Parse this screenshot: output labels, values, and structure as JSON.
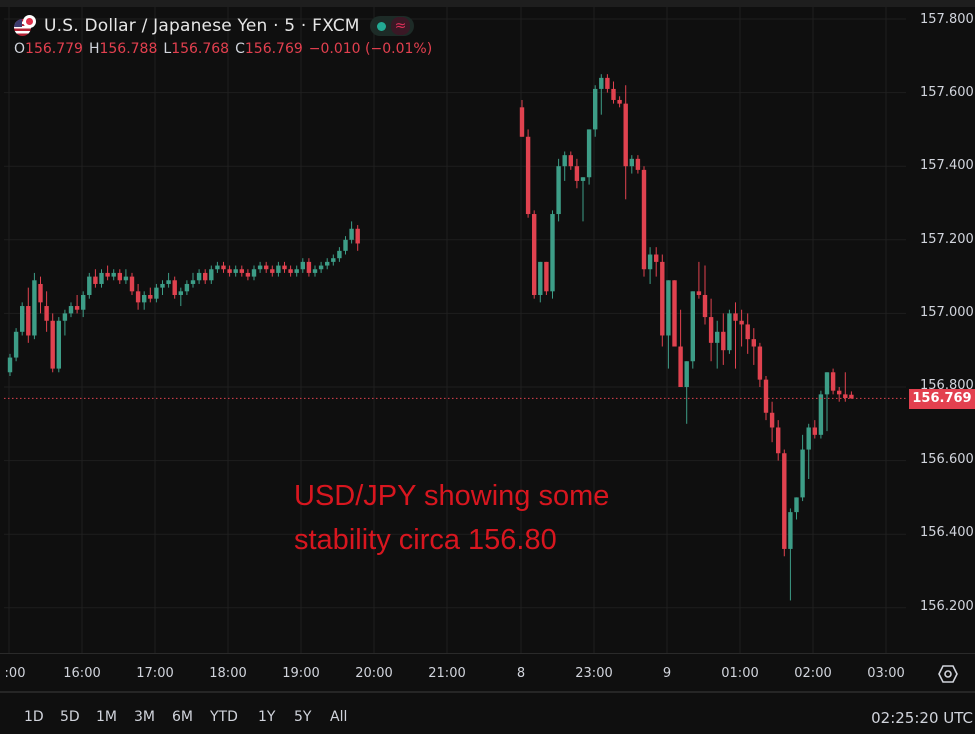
{
  "header": {
    "symbol_title": "U.S. Dollar / Japanese Yen · 5 · FXCM",
    "market_status": "open",
    "ohlc": {
      "o_label": "O",
      "o_value": "156.779",
      "h_label": "H",
      "h_value": "156.788",
      "l_label": "L",
      "l_value": "156.768",
      "c_label": "C",
      "c_value": "156.769",
      "change": "−0.010 (−0.01%)"
    }
  },
  "price_axis": {
    "ticks": [
      "157.800",
      "157.600",
      "157.400",
      "157.200",
      "157.000",
      "156.800",
      "156.600",
      "156.400",
      "156.200"
    ],
    "last_price": "156.769"
  },
  "time_axis": {
    "labels": [
      ":00",
      "16:00",
      "17:00",
      "18:00",
      "19:00",
      "20:00",
      "21:00",
      "8",
      "23:00",
      "9",
      "01:00",
      "02:00",
      "03:00"
    ]
  },
  "range_buttons": [
    "1D",
    "5D",
    "1M",
    "3M",
    "6M",
    "YTD",
    "1Y",
    "5Y",
    "All"
  ],
  "clock": "02:25:20 UTC",
  "annotation": {
    "line1": "USD/JPY showing some",
    "line2": "stability circa 156.80"
  },
  "colors": {
    "up": "#3d9d87",
    "down": "#e0424f",
    "background": "#0f0f0f",
    "grid": "#1f1f1f",
    "annotation": "#d8161f"
  },
  "chart_data": {
    "type": "candlestick",
    "title": "U.S. Dollar / Japanese Yen · 5 · FXCM",
    "interval": "5 min",
    "xlabel": "",
    "ylabel": "",
    "ylim": [
      156.15,
      157.82
    ],
    "y_ticks": [
      156.2,
      156.4,
      156.6,
      156.8,
      157.0,
      157.2,
      157.4,
      157.6,
      157.8
    ],
    "x_tick_labels": [
      ":00",
      "16:00",
      "17:00",
      "18:00",
      "19:00",
      "20:00",
      "21:00",
      "8",
      "23:00",
      "9",
      "01:00",
      "02:00",
      "03:00"
    ],
    "last_price": 156.769,
    "ohlc_last": {
      "open": 156.779,
      "high": 156.788,
      "low": 156.768,
      "close": 156.769
    },
    "grid": true,
    "candles": [
      [
        156.84,
        156.89,
        156.83,
        156.88
      ],
      [
        156.88,
        156.96,
        156.87,
        156.95
      ],
      [
        156.95,
        157.03,
        156.94,
        157.02
      ],
      [
        157.02,
        157.07,
        156.92,
        156.94
      ],
      [
        156.94,
        157.11,
        156.93,
        157.09
      ],
      [
        157.08,
        157.1,
        157.0,
        157.03
      ],
      [
        157.02,
        157.06,
        156.95,
        156.98
      ],
      [
        156.98,
        157.0,
        156.84,
        156.85
      ],
      [
        156.85,
        156.99,
        156.84,
        156.98
      ],
      [
        156.98,
        157.01,
        156.94,
        157.0
      ],
      [
        157.0,
        157.03,
        156.99,
        157.02
      ],
      [
        157.02,
        157.05,
        157.0,
        157.01
      ],
      [
        157.01,
        157.06,
        156.99,
        157.05
      ],
      [
        157.05,
        157.11,
        157.04,
        157.1
      ],
      [
        157.1,
        157.12,
        157.07,
        157.08
      ],
      [
        157.08,
        157.12,
        157.07,
        157.11
      ],
      [
        157.11,
        157.13,
        157.09,
        157.1
      ],
      [
        157.1,
        157.12,
        157.09,
        157.11
      ],
      [
        157.11,
        157.12,
        157.08,
        157.09
      ],
      [
        157.09,
        157.12,
        157.08,
        157.1
      ],
      [
        157.1,
        157.11,
        157.05,
        157.06
      ],
      [
        157.06,
        157.08,
        157.01,
        157.03
      ],
      [
        157.03,
        157.06,
        157.01,
        157.05
      ],
      [
        157.05,
        157.07,
        157.03,
        157.04
      ],
      [
        157.04,
        157.08,
        157.03,
        157.07
      ],
      [
        157.07,
        157.09,
        157.05,
        157.08
      ],
      [
        157.08,
        157.11,
        157.07,
        157.09
      ],
      [
        157.09,
        157.1,
        157.04,
        157.05
      ],
      [
        157.05,
        157.07,
        157.02,
        157.06
      ],
      [
        157.06,
        157.09,
        157.05,
        157.08
      ],
      [
        157.08,
        157.11,
        157.07,
        157.09
      ],
      [
        157.09,
        157.12,
        157.08,
        157.11
      ],
      [
        157.11,
        157.12,
        157.08,
        157.09
      ],
      [
        157.09,
        157.13,
        157.08,
        157.12
      ],
      [
        157.12,
        157.14,
        157.11,
        157.13
      ],
      [
        157.13,
        157.14,
        157.11,
        157.12
      ],
      [
        157.12,
        157.13,
        157.1,
        157.11
      ],
      [
        157.11,
        157.13,
        157.1,
        157.12
      ],
      [
        157.12,
        157.13,
        157.1,
        157.11
      ],
      [
        157.11,
        157.12,
        157.09,
        157.1
      ],
      [
        157.1,
        157.13,
        157.09,
        157.12
      ],
      [
        157.12,
        157.14,
        157.11,
        157.13
      ],
      [
        157.13,
        157.14,
        157.11,
        157.12
      ],
      [
        157.12,
        157.13,
        157.1,
        157.11
      ],
      [
        157.11,
        157.14,
        157.1,
        157.13
      ],
      [
        157.13,
        157.14,
        157.11,
        157.12
      ],
      [
        157.12,
        157.13,
        157.1,
        157.11
      ],
      [
        157.11,
        157.13,
        157.1,
        157.12
      ],
      [
        157.12,
        157.15,
        157.11,
        157.14
      ],
      [
        157.14,
        157.15,
        157.1,
        157.11
      ],
      [
        157.11,
        157.13,
        157.1,
        157.12
      ],
      [
        157.12,
        157.14,
        157.11,
        157.13
      ],
      [
        157.13,
        157.15,
        157.12,
        157.14
      ],
      [
        157.14,
        157.16,
        157.13,
        157.15
      ],
      [
        157.15,
        157.18,
        157.14,
        157.17
      ],
      [
        157.17,
        157.21,
        157.16,
        157.2
      ],
      [
        157.2,
        157.25,
        157.19,
        157.23
      ],
      [
        157.23,
        157.24,
        157.17,
        157.19
      ],
      [
        157.56,
        157.58,
        157.48,
        157.48
      ],
      [
        157.48,
        157.5,
        157.26,
        157.27
      ],
      [
        157.27,
        157.28,
        157.04,
        157.05
      ],
      [
        157.05,
        157.14,
        157.03,
        157.14
      ],
      [
        157.14,
        157.14,
        157.05,
        157.06
      ],
      [
        157.06,
        157.28,
        157.04,
        157.27
      ],
      [
        157.27,
        157.42,
        157.25,
        157.4
      ],
      [
        157.4,
        157.44,
        157.36,
        157.43
      ],
      [
        157.43,
        157.44,
        157.39,
        157.4
      ],
      [
        157.4,
        157.42,
        157.34,
        157.36
      ],
      [
        157.36,
        157.37,
        157.25,
        157.37
      ],
      [
        157.37,
        157.5,
        157.35,
        157.5
      ],
      [
        157.5,
        157.62,
        157.48,
        157.61
      ],
      [
        157.61,
        157.65,
        157.54,
        157.64
      ],
      [
        157.64,
        157.65,
        157.6,
        157.61
      ],
      [
        157.61,
        157.63,
        157.57,
        157.58
      ],
      [
        157.58,
        157.59,
        157.56,
        157.57
      ],
      [
        157.57,
        157.62,
        157.31,
        157.4
      ],
      [
        157.4,
        157.43,
        157.38,
        157.42
      ],
      [
        157.42,
        157.43,
        157.38,
        157.39
      ],
      [
        157.39,
        157.4,
        157.1,
        157.12
      ],
      [
        157.12,
        157.18,
        157.08,
        157.16
      ],
      [
        157.16,
        157.18,
        157.1,
        157.14
      ],
      [
        157.14,
        157.16,
        156.91,
        156.94
      ],
      [
        156.94,
        157.09,
        156.85,
        157.09
      ],
      [
        157.09,
        157.09,
        156.91,
        156.91
      ],
      [
        156.91,
        157.01,
        156.8,
        156.8
      ],
      [
        156.8,
        156.87,
        156.7,
        156.87
      ],
      [
        156.87,
        157.06,
        156.85,
        157.06
      ],
      [
        157.06,
        157.14,
        157.04,
        157.05
      ],
      [
        157.05,
        157.13,
        156.97,
        156.99
      ],
      [
        156.99,
        157.04,
        156.87,
        156.92
      ],
      [
        156.92,
        156.98,
        156.85,
        156.95
      ],
      [
        156.95,
        157.0,
        156.86,
        156.9
      ],
      [
        156.9,
        157.01,
        156.89,
        157.0
      ],
      [
        157.0,
        157.03,
        156.85,
        156.98
      ],
      [
        156.98,
        157.01,
        156.91,
        156.97
      ],
      [
        156.97,
        157.0,
        156.89,
        156.93
      ],
      [
        156.93,
        156.96,
        156.86,
        156.91
      ],
      [
        156.91,
        156.92,
        156.8,
        156.82
      ],
      [
        156.82,
        156.83,
        156.71,
        156.73
      ],
      [
        156.73,
        156.76,
        156.65,
        156.69
      ],
      [
        156.69,
        156.71,
        156.6,
        156.62
      ],
      [
        156.62,
        156.63,
        156.34,
        156.36
      ],
      [
        156.36,
        156.47,
        156.22,
        156.46
      ],
      [
        156.46,
        156.5,
        156.44,
        156.5
      ],
      [
        156.5,
        156.67,
        156.49,
        156.63
      ],
      [
        156.63,
        156.7,
        156.55,
        156.69
      ],
      [
        156.69,
        156.71,
        156.66,
        156.67
      ],
      [
        156.67,
        156.79,
        156.66,
        156.78
      ],
      [
        156.78,
        156.84,
        156.68,
        156.84
      ],
      [
        156.84,
        156.85,
        156.78,
        156.79
      ],
      [
        156.79,
        156.8,
        156.76,
        156.78
      ],
      [
        156.78,
        156.84,
        156.76,
        156.77
      ],
      [
        156.779,
        156.788,
        156.768,
        156.769
      ]
    ],
    "candle_x_start": 10,
    "candle_spacing": 6.1,
    "gap_after_index": 57,
    "gap_x": 522
  }
}
